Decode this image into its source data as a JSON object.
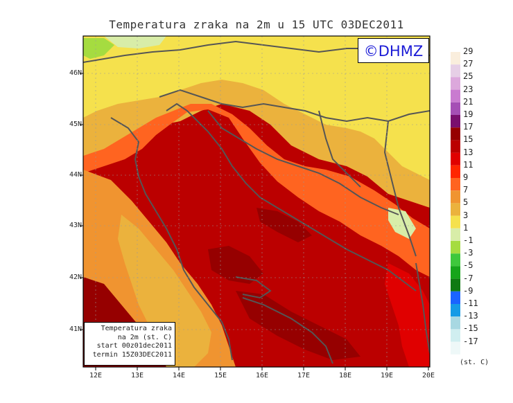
{
  "title": "Temperatura zraka na 2m u 15 UTC 03DEC2011",
  "logo": "©DHMZ",
  "info_box": {
    "line1": "Temperatura zraka",
    "line2": "na 2m (st. C)",
    "line3": "start 00z01dec2011",
    "line4": "termin 15Z03DEC2011"
  },
  "lat_labels": [
    "46N",
    "45N",
    "44N",
    "43N",
    "42N",
    "41N"
  ],
  "lon_labels": [
    "12E",
    "13E",
    "14E",
    "15E",
    "16E",
    "17E",
    "18E",
    "19E",
    "20E"
  ],
  "colorbar": {
    "labels": [
      "29",
      "27",
      "25",
      "23",
      "21",
      "19",
      "17",
      "15",
      "13",
      "11",
      "9",
      "7",
      "5",
      "3",
      "1",
      "-1",
      "-3",
      "-5",
      "-7",
      "-9",
      "-11",
      "-13",
      "-15",
      "-17"
    ],
    "colors": [
      "#faeedd",
      "#e6cfe6",
      "#dca8dc",
      "#c97bd0",
      "#a54fb5",
      "#7a0f6e",
      "#960000",
      "#bb0000",
      "#e00000",
      "#ff2600",
      "#ff6420",
      "#f09430",
      "#ebb23d",
      "#f5e14d",
      "#d8eda8",
      "#a5dc40",
      "#3ec83c",
      "#16a51a",
      "#0f7a12",
      "#1a64ff",
      "#159be6",
      "#a8d8e2",
      "#d0eef0",
      "#eef8f8"
    ],
    "units": "(st. C)"
  },
  "palette": {
    "warm_sea": "#bb0000",
    "hot_core": "#960000",
    "coast_red": "#e00000",
    "orange": "#ff6420",
    "light_orange": "#f09430",
    "gold": "#ebb23d",
    "yellow": "#f5e14d",
    "pale_green": "#d8eda8",
    "green": "#a5dc40",
    "border_line": "#555555"
  }
}
